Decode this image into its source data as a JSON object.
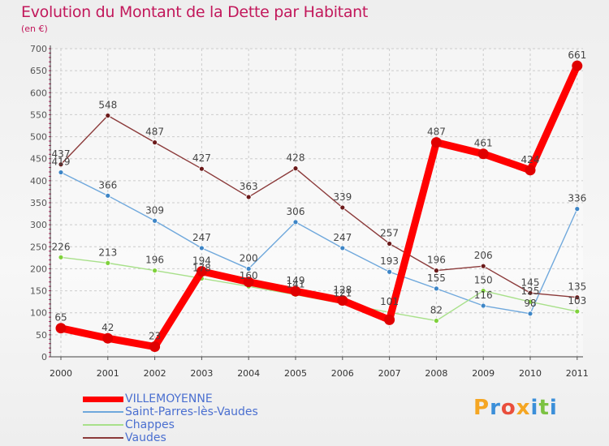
{
  "title": "Evolution du Montant de la Dette par Habitant",
  "subtitle": "(en €)",
  "brand": "Proxiti",
  "brand_letters": [
    {
      "ch": "P",
      "color": "#f5a623"
    },
    {
      "ch": "r",
      "color": "#3b8fd9"
    },
    {
      "ch": "o",
      "color": "#e94e3c"
    },
    {
      "ch": "x",
      "color": "#f5a623"
    },
    {
      "ch": "i",
      "color": "#3b8fd9"
    },
    {
      "ch": "t",
      "color": "#7cc242"
    },
    {
      "ch": "i",
      "color": "#3b8fd9"
    }
  ],
  "chart_data": {
    "type": "line",
    "title": "Evolution du Montant de la Dette par Habitant",
    "subtitle": "(en €)",
    "xlabel": "",
    "ylabel": "",
    "categories": [
      "2000",
      "2001",
      "2002",
      "2003",
      "2004",
      "2005",
      "2006",
      "2007",
      "2008",
      "2009",
      "2010",
      "2011"
    ],
    "ylim": [
      0,
      700
    ],
    "yticks": [
      0,
      50,
      100,
      150,
      200,
      250,
      300,
      350,
      400,
      450,
      500,
      550,
      600,
      650,
      700
    ],
    "grid": true,
    "legend": "bottom-left",
    "series": [
      {
        "name": "VILLEMOYENNE",
        "color": "#ff0000",
        "emphasis": true,
        "marker_color": "#e00000",
        "values": [
          65,
          42,
          23,
          194,
          170,
          149,
          128,
          84,
          487,
          461,
          424,
          661
        ],
        "labels": [
          "65",
          "42",
          "23",
          "194",
          "",
          "149",
          "128",
          "",
          "487",
          "461",
          "424",
          "661"
        ]
      },
      {
        "name": "Saint-Parres-lès-Vaudes",
        "color": "#6fa8dc",
        "marker_color": "#3d85c6",
        "values": [
          419,
          366,
          309,
          247,
          200,
          306,
          247,
          193,
          155,
          116,
          98,
          336
        ],
        "labels": [
          "419",
          "366",
          "309",
          "247",
          "200",
          "306",
          "247",
          "193",
          "155",
          "116",
          "98",
          "336"
        ]
      },
      {
        "name": "Chappes",
        "color": "#a8e08a",
        "marker_color": "#7fd13b",
        "values": [
          226,
          213,
          196,
          178,
          160,
          141,
          121,
          101,
          82,
          150,
          125,
          103
        ],
        "labels": [
          "226",
          "213",
          "196",
          "178",
          "160",
          "141",
          "121",
          "101",
          "82",
          "150",
          "125",
          "103"
        ]
      },
      {
        "name": "Vaudes",
        "color": "#8b3a3a",
        "marker_color": "#6b1a1a",
        "values": [
          437,
          548,
          487,
          427,
          363,
          428,
          339,
          257,
          196,
          206,
          145,
          135
        ],
        "labels": [
          "437",
          "548",
          "487",
          "427",
          "363",
          "428",
          "339",
          "257",
          "196",
          "206",
          "145",
          "135"
        ]
      }
    ]
  }
}
